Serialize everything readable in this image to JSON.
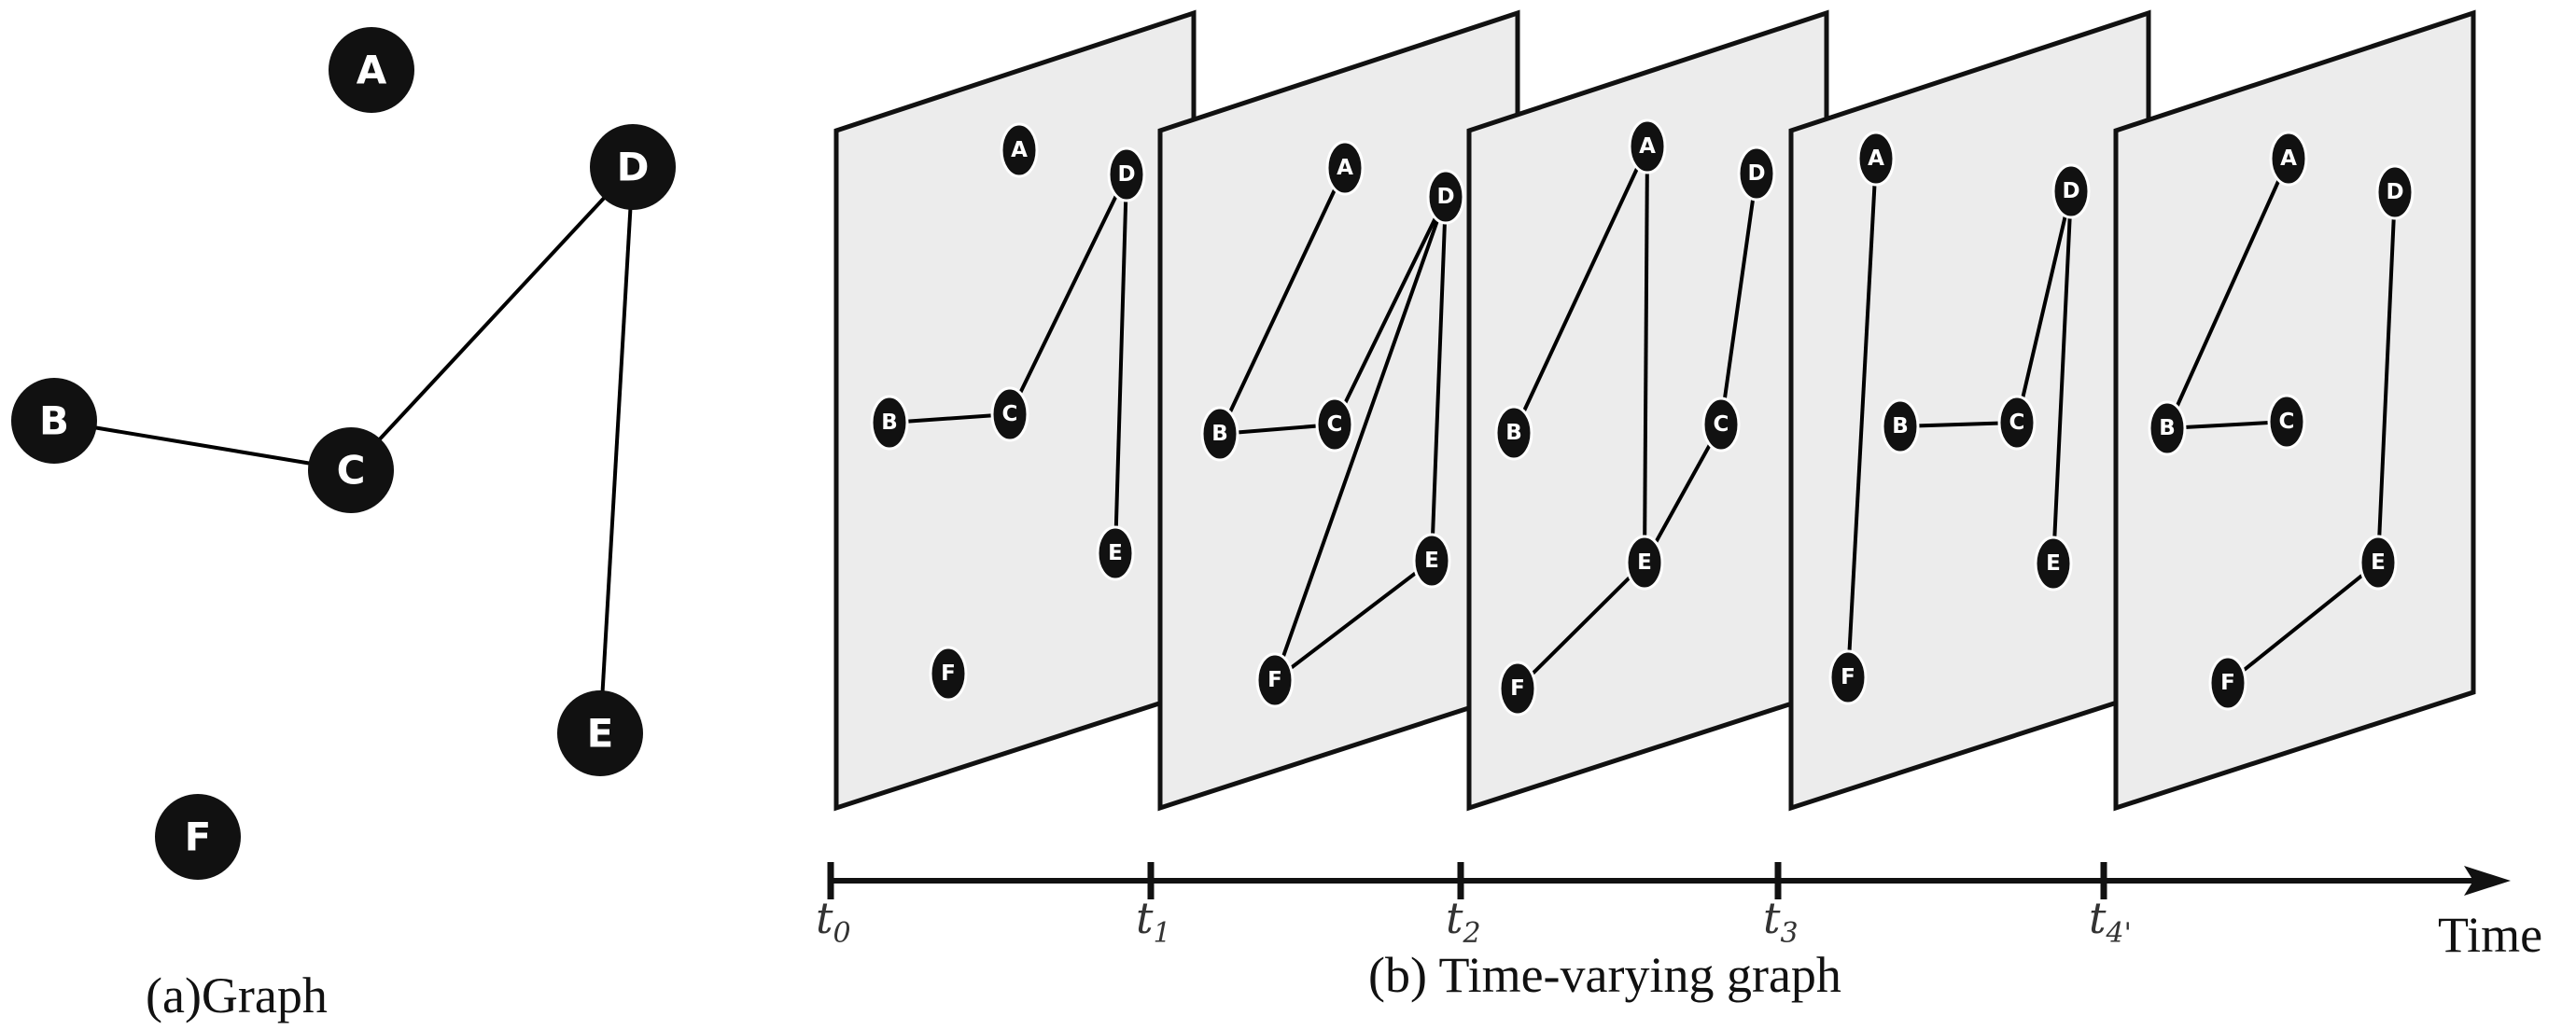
{
  "graph": {
    "nodes": [
      "A",
      "B",
      "C",
      "D",
      "E",
      "F"
    ],
    "edges": [
      [
        "B",
        "C"
      ],
      [
        "C",
        "D"
      ],
      [
        "D",
        "E"
      ]
    ],
    "caption": "(a)Graph"
  },
  "time_varying": {
    "caption": "(b) Time-varying graph",
    "axis_label": "Time",
    "ticks": [
      {
        "base": "t",
        "sub": "0"
      },
      {
        "base": "t",
        "sub": "1"
      },
      {
        "base": "t",
        "sub": "2"
      },
      {
        "base": "t",
        "sub": "3"
      },
      {
        "base": "t",
        "sub": "4'"
      }
    ],
    "snapshots": [
      {
        "edges": [
          [
            "B",
            "C"
          ],
          [
            "C",
            "D"
          ],
          [
            "D",
            "E"
          ]
        ]
      },
      {
        "edges": [
          [
            "A",
            "B"
          ],
          [
            "B",
            "C"
          ],
          [
            "C",
            "D"
          ],
          [
            "D",
            "E"
          ],
          [
            "D",
            "F"
          ],
          [
            "E",
            "F"
          ]
        ]
      },
      {
        "edges": [
          [
            "A",
            "B"
          ],
          [
            "A",
            "E"
          ],
          [
            "D",
            "C"
          ],
          [
            "C",
            "E"
          ],
          [
            "E",
            "F"
          ]
        ]
      },
      {
        "edges": [
          [
            "A",
            "F"
          ],
          [
            "B",
            "C"
          ],
          [
            "C",
            "D"
          ],
          [
            "D",
            "E"
          ]
        ]
      },
      {
        "edges": [
          [
            "A",
            "B"
          ],
          [
            "B",
            "C"
          ],
          [
            "D",
            "E"
          ],
          [
            "E",
            "F"
          ]
        ]
      }
    ]
  },
  "colors": {
    "node": "#111111",
    "plane": "#ececec",
    "edge": "#000000"
  }
}
